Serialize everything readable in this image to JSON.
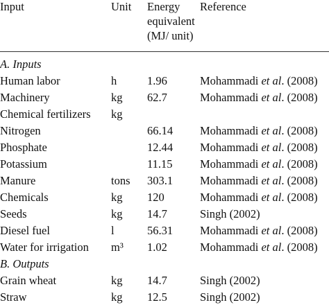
{
  "table": {
    "header": {
      "input": "Input",
      "unit": "Unit",
      "energy": [
        "Energy",
        "equivalent",
        "(MJ/ unit)"
      ],
      "reference": "Reference"
    },
    "sections": [
      {
        "title": "A. Inputs",
        "rows": [
          {
            "input": "Human labor",
            "unit": "h",
            "energy": "1.96",
            "reference": [
              "Mohammadi",
              "et al",
              ". (2008)"
            ]
          },
          {
            "input": "Machinery",
            "unit": "kg",
            "energy": "62.7",
            "reference": [
              "Mohammadi",
              "et al",
              ". (2008)"
            ]
          },
          {
            "input": "Chemical fertilizers",
            "unit": "kg"
          },
          {
            "input": "Nitrogen",
            "energy": "66.14",
            "reference": [
              "Mohammadi",
              "et al",
              ". (2008)"
            ]
          },
          {
            "input": "Phosphate",
            "energy": "12.44",
            "reference": [
              "Mohammadi",
              "et al",
              ". (2008)"
            ]
          },
          {
            "input": "Potassium",
            "energy": "11.15",
            "reference": [
              "Mohammadi",
              "et al",
              ". (2008)"
            ]
          },
          {
            "input": "Manure",
            "unit": "tons",
            "energy": "303.1",
            "reference": [
              "Mohammadi",
              "et al",
              ". (2008)"
            ]
          },
          {
            "input": "Chemicals",
            "unit": "kg",
            "energy": "120",
            "reference": [
              "Mohammadi",
              "et al",
              ". (2008)"
            ]
          },
          {
            "input": "Seeds",
            "unit": "kg",
            "energy": "14.7",
            "reference": [
              "Singh (2002)"
            ]
          },
          {
            "input": "Diesel fuel",
            "unit": "l",
            "energy": "56.31",
            "reference": [
              "Mohammadi",
              "et al",
              ". (2008)"
            ]
          },
          {
            "input": "Water for irrigation",
            "unit": "m³",
            "energy": "1.02",
            "reference": [
              "Mohammadi",
              "et al",
              ". (2008)"
            ]
          }
        ]
      },
      {
        "title": "B. Outputs",
        "rows": [
          {
            "input": "Grain wheat",
            "unit": "kg",
            "energy": "14.7",
            "reference": [
              "Singh (2002)"
            ]
          },
          {
            "input": "Straw",
            "unit": "kg",
            "energy": "12.5",
            "reference": [
              "Singh (2002)"
            ]
          }
        ]
      }
    ]
  }
}
